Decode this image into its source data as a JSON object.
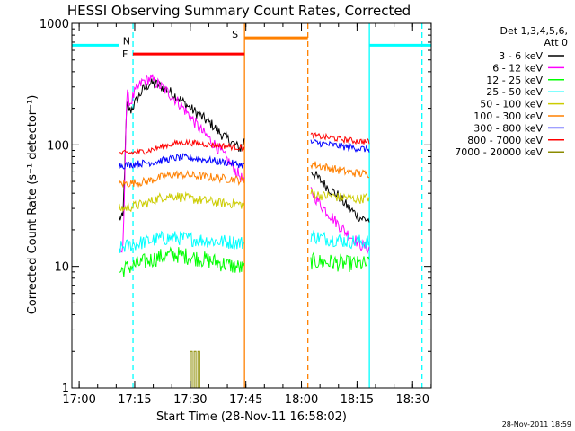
{
  "chart_data": {
    "type": "line",
    "title": "HESSI Observing Summary Count Rates, Corrected",
    "xlabel": "Start Time (28-Nov-11 16:58:02)",
    "ylabel": "Corrected Count Rate (s⁻¹ detector⁻¹)",
    "x_unit": "minutes after 16:58:02",
    "xlim": [
      0,
      97
    ],
    "ylim": [
      1,
      1000
    ],
    "y_scale": "log",
    "x_ticks": [
      "17:00",
      "17:15",
      "17:30",
      "17:45",
      "18:00",
      "18:15",
      "18:30"
    ],
    "y_ticks": [
      "1",
      "10",
      "100",
      "1000"
    ],
    "legend_position": "top-right",
    "legend_title": [
      "Det 1,3,4,5,6,",
      "Att 0"
    ],
    "series": [
      {
        "name": "3 - 6 keV",
        "color": "#000000",
        "segments": [
          [
            [
              12.8,
              25
            ],
            [
              13.8,
              25
            ],
            [
              14.8,
              210
            ],
            [
              15.8,
              190
            ],
            [
              17,
              220
            ],
            [
              19,
              280
            ],
            [
              21,
              320
            ],
            [
              23,
              315
            ],
            [
              26,
              280
            ],
            [
              29,
              240
            ],
            [
              32,
              200
            ],
            [
              35,
              170
            ],
            [
              38,
              145
            ],
            [
              40,
              125
            ],
            [
              42,
              112
            ],
            [
              44,
              100
            ],
            [
              45.5,
              93
            ],
            [
              46.6,
              110
            ]
          ],
          [
            [
              64.5,
              62
            ],
            [
              66,
              55
            ],
            [
              68,
              48
            ],
            [
              70,
              42
            ],
            [
              72,
              38
            ],
            [
              74,
              32
            ],
            [
              76,
              28
            ],
            [
              78,
              25
            ],
            [
              80.3,
              24
            ]
          ]
        ]
      },
      {
        "name": "6 - 12 keV",
        "color": "#ff00ff",
        "segments": [
          [
            [
              12.8,
              12
            ],
            [
              13.8,
              14
            ],
            [
              14.8,
              260
            ],
            [
              15.8,
              220
            ],
            [
              17,
              270
            ],
            [
              19,
              330
            ],
            [
              21,
              350
            ],
            [
              23,
              320
            ],
            [
              26,
              270
            ],
            [
              29,
              220
            ],
            [
              32,
              170
            ],
            [
              35,
              130
            ],
            [
              38,
              105
            ],
            [
              40,
              90
            ],
            [
              42,
              75
            ],
            [
              44,
              62
            ],
            [
              45.5,
              55
            ],
            [
              46.6,
              48
            ]
          ],
          [
            [
              64.5,
              42
            ],
            [
              66,
              36
            ],
            [
              68,
              30
            ],
            [
              70,
              26
            ],
            [
              72,
              22
            ],
            [
              74,
              19
            ],
            [
              76,
              17
            ],
            [
              78,
              15
            ],
            [
              80.3,
              14
            ]
          ]
        ]
      },
      {
        "name": "12 - 25 keV",
        "color": "#00ff00",
        "segments": [
          [
            [
              12.8,
              9
            ],
            [
              14,
              9.5
            ],
            [
              16,
              10
            ],
            [
              18,
              10.5
            ],
            [
              20,
              11
            ],
            [
              22,
              11.5
            ],
            [
              24,
              12
            ],
            [
              26,
              12.3
            ],
            [
              28,
              12.5
            ],
            [
              30,
              12.3
            ],
            [
              32,
              12
            ],
            [
              35,
              11.5
            ],
            [
              38,
              11
            ],
            [
              41,
              10.5
            ],
            [
              44,
              10
            ],
            [
              46.6,
              9.5
            ]
          ],
          [
            [
              64.5,
              11
            ],
            [
              66,
              11
            ],
            [
              68,
              10.8
            ],
            [
              70,
              10.8
            ],
            [
              72,
              10.6
            ],
            [
              74,
              10.5
            ],
            [
              76,
              10.5
            ],
            [
              78,
              10.4
            ],
            [
              80.3,
              10.5
            ]
          ]
        ]
      },
      {
        "name": "25 - 50 keV",
        "color": "#00ffff",
        "segments": [
          [
            [
              12.8,
              14
            ],
            [
              14,
              14.5
            ],
            [
              16,
              15
            ],
            [
              18,
              15.5
            ],
            [
              20,
              16
            ],
            [
              22,
              16.5
            ],
            [
              24,
              17
            ],
            [
              26,
              17
            ],
            [
              28,
              17.2
            ],
            [
              30,
              17
            ],
            [
              32,
              16.8
            ],
            [
              35,
              16.5
            ],
            [
              38,
              16.2
            ],
            [
              41,
              16
            ],
            [
              44,
              15.8
            ],
            [
              46.6,
              15.5
            ]
          ],
          [
            [
              64.5,
              18
            ],
            [
              66,
              17.5
            ],
            [
              68,
              17
            ],
            [
              70,
              16.8
            ],
            [
              72,
              16.5
            ],
            [
              74,
              16.2
            ],
            [
              76,
              16
            ],
            [
              78,
              16
            ],
            [
              80.3,
              16
            ]
          ]
        ]
      },
      {
        "name": "50 - 100 keV",
        "color": "#cccc00",
        "segments": [
          [
            [
              12.8,
              30
            ],
            [
              14,
              30
            ],
            [
              16,
              31
            ],
            [
              18,
              32
            ],
            [
              20,
              33
            ],
            [
              22,
              35
            ],
            [
              24,
              37
            ],
            [
              26,
              38
            ],
            [
              28,
              38
            ],
            [
              30,
              37
            ],
            [
              32,
              36
            ],
            [
              35,
              35
            ],
            [
              38,
              34
            ],
            [
              41,
              33
            ],
            [
              44,
              33
            ],
            [
              46.6,
              32
            ]
          ],
          [
            [
              64.5,
              40
            ],
            [
              66,
              39
            ],
            [
              68,
              38
            ],
            [
              70,
              38
            ],
            [
              72,
              37
            ],
            [
              74,
              37
            ],
            [
              76,
              36
            ],
            [
              78,
              36
            ],
            [
              80.3,
              37
            ]
          ]
        ]
      },
      {
        "name": "100 - 300 keV",
        "color": "#ff8000",
        "segments": [
          [
            [
              12.8,
              48
            ],
            [
              14,
              48
            ],
            [
              16,
              48.5
            ],
            [
              18,
              49
            ],
            [
              20,
              50
            ],
            [
              22,
              52
            ],
            [
              24,
              54
            ],
            [
              26,
              56
            ],
            [
              28,
              57
            ],
            [
              30,
              57
            ],
            [
              32,
              56
            ],
            [
              35,
              55
            ],
            [
              38,
              54
            ],
            [
              41,
              53
            ],
            [
              44,
              52
            ],
            [
              46.6,
              50
            ]
          ],
          [
            [
              64.5,
              70
            ],
            [
              66,
              68
            ],
            [
              68,
              66
            ],
            [
              70,
              64
            ],
            [
              72,
              62
            ],
            [
              74,
              60
            ],
            [
              76,
              59
            ],
            [
              78,
              58
            ],
            [
              80.3,
              58
            ]
          ]
        ]
      },
      {
        "name": "300 - 800 keV",
        "color": "#0000ff",
        "segments": [
          [
            [
              12.8,
              68
            ],
            [
              14,
              68
            ],
            [
              16,
              69
            ],
            [
              18,
              70
            ],
            [
              20,
              71
            ],
            [
              22,
              72
            ],
            [
              24,
              74
            ],
            [
              26,
              76
            ],
            [
              28,
              78
            ],
            [
              30,
              79
            ],
            [
              32,
              78
            ],
            [
              35,
              76
            ],
            [
              38,
              74
            ],
            [
              41,
              72
            ],
            [
              44,
              70
            ],
            [
              46.6,
              68
            ]
          ],
          [
            [
              64.5,
              105
            ],
            [
              66,
              104
            ],
            [
              68,
              102
            ],
            [
              70,
              100
            ],
            [
              72,
              98
            ],
            [
              74,
              96
            ],
            [
              76,
              95
            ],
            [
              78,
              93
            ],
            [
              80.3,
              92
            ]
          ]
        ]
      },
      {
        "name": "800 - 7000 keV",
        "color": "#ff0000",
        "segments": [
          [
            [
              12.8,
              85
            ],
            [
              14,
              85
            ],
            [
              16,
              86
            ],
            [
              18,
              87
            ],
            [
              20,
              89
            ],
            [
              22,
              92
            ],
            [
              24,
              96
            ],
            [
              26,
              100
            ],
            [
              28,
              103
            ],
            [
              30,
              105
            ],
            [
              32,
              104
            ],
            [
              35,
              102
            ],
            [
              38,
              100
            ],
            [
              41,
              98
            ],
            [
              44,
              96
            ],
            [
              46.6,
              94
            ]
          ],
          [
            [
              64.5,
              120
            ],
            [
              66,
              118
            ],
            [
              68,
              116
            ],
            [
              70,
              114
            ],
            [
              72,
              112
            ],
            [
              74,
              110
            ],
            [
              76,
              108
            ],
            [
              78,
              107
            ],
            [
              80.3,
              106
            ]
          ]
        ]
      },
      {
        "name": "7000 - 20000 keV",
        "color": "#8b8b00",
        "segments": [
          [
            [
              32,
              1
            ],
            [
              32,
              2
            ],
            [
              32.5,
              2
            ],
            [
              32.5,
              1
            ]
          ],
          [
            [
              33,
              1
            ],
            [
              33,
              2
            ],
            [
              33.5,
              2
            ],
            [
              33.5,
              1
            ]
          ],
          [
            [
              34,
              1
            ],
            [
              34,
              2
            ],
            [
              34.5,
              2
            ],
            [
              34.5,
              1
            ]
          ]
        ]
      }
    ],
    "state_bars": [
      {
        "label": "F",
        "color": "#ff0000",
        "x": [
          16.5,
          46.6
        ],
        "level": 560
      },
      {
        "label": "N",
        "color": "#00ffff",
        "x": [
          0,
          12.8
        ],
        "level": 660
      },
      {
        "label": "N",
        "color": "#00ffff",
        "x": [
          80.3,
          97
        ],
        "level": 660
      },
      {
        "label": "S",
        "color": "#ff8000",
        "x": [
          46.6,
          63.7
        ],
        "level": 760
      }
    ],
    "vertical_markers": [
      {
        "x": 16.5,
        "color": "#00ffff",
        "style": "dashed"
      },
      {
        "x": 46.6,
        "color": "#ff8000",
        "style": "solid"
      },
      {
        "x": 63.7,
        "color": "#ff8000",
        "style": "dashed"
      },
      {
        "x": 80.3,
        "color": "#00ffff",
        "style": "solid"
      },
      {
        "x": 94.5,
        "color": "#00ffff",
        "style": "dashed"
      }
    ],
    "footer_text": "28-Nov-2011 18:59"
  }
}
